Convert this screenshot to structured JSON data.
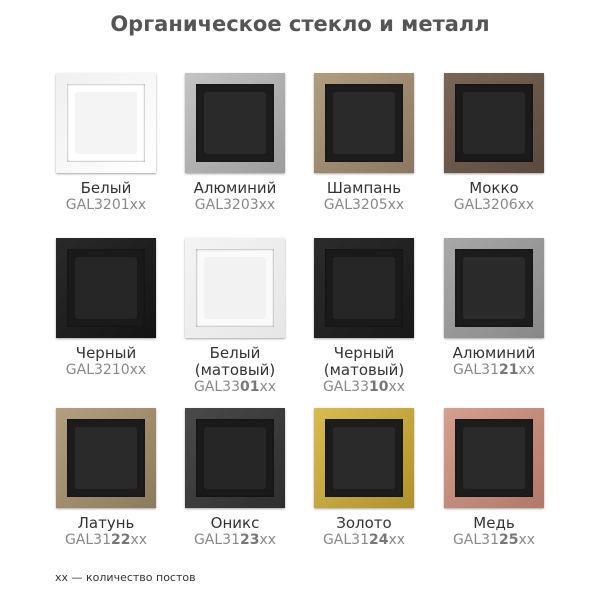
{
  "title": "Органическое стекло и металл",
  "items": [
    {
      "name": "Белый",
      "code_prefix": "GAL3201xx",
      "code_bold": "",
      "code_suffix": "",
      "frame": "#f0f0f0",
      "frame2": "#ffffff",
      "inner": "#ffffff",
      "insert": "#f4f4f4"
    },
    {
      "name": "Алюминий",
      "code_prefix": "GAL3203xx",
      "code_bold": "",
      "code_suffix": "",
      "frame": "#c4c4c4",
      "frame2": "#9c9c9c",
      "inner": "#1c1c1c",
      "insert": "#2a2a2a"
    },
    {
      "name": "Шампань",
      "code_prefix": "GAL3205xx",
      "code_bold": "",
      "code_suffix": "",
      "frame": "#b09c80",
      "frame2": "#8c7860",
      "inner": "#1c1c1c",
      "insert": "#2a2a2a"
    },
    {
      "name": "Мокко",
      "code_prefix": "GAL3206xx",
      "code_bold": "",
      "code_suffix": "",
      "frame": "#7a6656",
      "frame2": "#5a4a3e",
      "inner": "#1a1a1a",
      "insert": "#282828"
    },
    {
      "name": "Черный",
      "code_prefix": "GAL3210xx",
      "code_bold": "",
      "code_suffix": "",
      "frame": "#2a2a2a",
      "frame2": "#141414",
      "inner": "#1a1a1a",
      "insert": "#262626"
    },
    {
      "name": "Белый (матовый)",
      "code_prefix": "GAL33",
      "code_bold": "01",
      "code_suffix": "xx",
      "frame": "#f4f4f4",
      "frame2": "#e6e6e6",
      "inner": "#fafafa",
      "insert": "#f2f2f2"
    },
    {
      "name": "Черный (матовый)",
      "code_prefix": "GAL33",
      "code_bold": "10",
      "code_suffix": "xx",
      "frame": "#2c2c2c",
      "frame2": "#181818",
      "inner": "#1a1a1a",
      "insert": "#262626"
    },
    {
      "name": "Алюминий",
      "code_prefix": "GAL31",
      "code_bold": "21",
      "code_suffix": "xx",
      "frame": "#a8a8a8",
      "frame2": "#888888",
      "inner": "#1c1c1c",
      "insert": "#2a2a2a"
    },
    {
      "name": "Латунь",
      "code_prefix": "GAL31",
      "code_bold": "22",
      "code_suffix": "xx",
      "frame": "#b4a080",
      "frame2": "#8c7a5c",
      "inner": "#1c1c1c",
      "insert": "#2a2a2a"
    },
    {
      "name": "Оникс",
      "code_prefix": "GAL31",
      "code_bold": "23",
      "code_suffix": "xx",
      "frame": "#4a4a4a",
      "frame2": "#2e2e2e",
      "inner": "#1a1a1a",
      "insert": "#262626"
    },
    {
      "name": "Золото",
      "code_prefix": "GAL31",
      "code_bold": "24",
      "code_suffix": "xx",
      "frame": "#d8bc50",
      "frame2": "#b0922c",
      "inner": "#1c1c1c",
      "insert": "#2a2a2a"
    },
    {
      "name": "Медь",
      "code_prefix": "GAL31",
      "code_bold": "25",
      "code_suffix": "xx",
      "frame": "#d4a090",
      "frame2": "#b07868",
      "inner": "#1c1c1c",
      "insert": "#2a2a2a"
    }
  ],
  "footnote": "xx — количество постов"
}
